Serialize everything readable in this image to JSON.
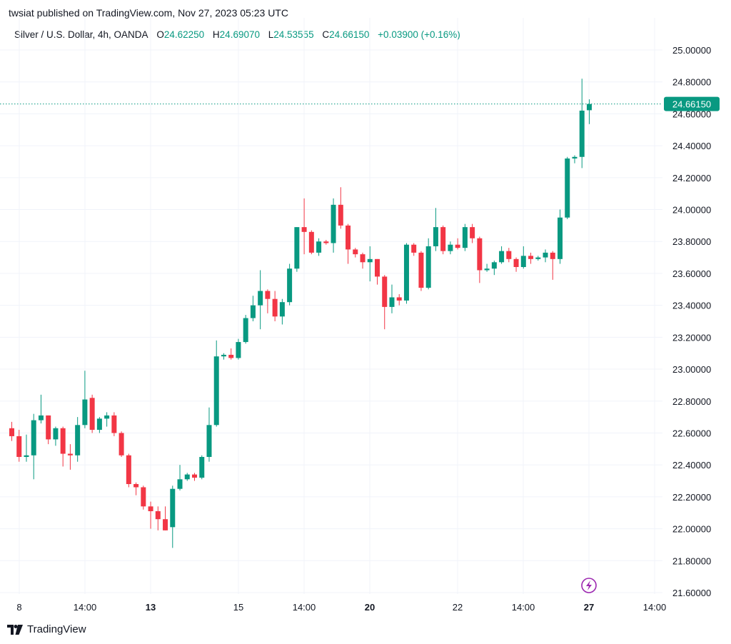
{
  "header": {
    "published": "twsiat published on TradingView.com, Nov 27, 2023 05:23 UTC"
  },
  "legend": {
    "symbol": "Silver / U.S. Dollar, 4h, OANDA",
    "o_label": "O",
    "o_value": "24.62250",
    "h_label": "H",
    "h_value": "24.69070",
    "l_label": "L",
    "l_value": "24.53555",
    "c_label": "C",
    "c_value": "24.66150",
    "change": "+0.03900 (+0.16%)"
  },
  "footer": {
    "brand": "TradingView"
  },
  "colors": {
    "up": "#089981",
    "down": "#F23645",
    "grid": "#F0F3FA",
    "last_price_line": "#089981",
    "flash_icon": "#9C27B0"
  },
  "chart_data": {
    "type": "candlestick",
    "ylim": [
      21.6,
      25.0
    ],
    "y_ticks": [
      "25.00000",
      "24.80000",
      "24.60000",
      "24.40000",
      "24.20000",
      "24.00000",
      "23.80000",
      "23.60000",
      "23.40000",
      "23.20000",
      "23.00000",
      "22.80000",
      "22.60000",
      "22.40000",
      "22.20000",
      "22.00000",
      "21.80000",
      "21.60000"
    ],
    "x_ticks": [
      {
        "label": "8",
        "bold": false
      },
      {
        "label": "14:00",
        "bold": false
      },
      {
        "label": "13",
        "bold": true
      },
      {
        "label": "15",
        "bold": false
      },
      {
        "label": "14:00",
        "bold": false
      },
      {
        "label": "20",
        "bold": true
      },
      {
        "label": "22",
        "bold": false
      },
      {
        "label": "14:00",
        "bold": false
      },
      {
        "label": "27",
        "bold": true
      },
      {
        "label": "14:00",
        "bold": false
      }
    ],
    "last_price": 24.6615,
    "last_price_label": "24.66150",
    "candles": [
      {
        "o": 22.63,
        "h": 22.67,
        "l": 22.55,
        "c": 22.58
      },
      {
        "o": 22.58,
        "h": 22.62,
        "l": 22.42,
        "c": 22.45
      },
      {
        "o": 22.45,
        "h": 22.59,
        "l": 22.42,
        "c": 22.46
      },
      {
        "o": 22.46,
        "h": 22.72,
        "l": 22.31,
        "c": 22.68
      },
      {
        "o": 22.68,
        "h": 22.84,
        "l": 22.66,
        "c": 22.71
      },
      {
        "o": 22.71,
        "h": 22.71,
        "l": 22.53,
        "c": 22.56
      },
      {
        "o": 22.56,
        "h": 22.64,
        "l": 22.52,
        "c": 22.63
      },
      {
        "o": 22.63,
        "h": 22.64,
        "l": 22.39,
        "c": 22.47
      },
      {
        "o": 22.47,
        "h": 22.53,
        "l": 22.37,
        "c": 22.46
      },
      {
        "o": 22.46,
        "h": 22.7,
        "l": 22.42,
        "c": 22.65
      },
      {
        "o": 22.65,
        "h": 22.99,
        "l": 22.63,
        "c": 22.81
      },
      {
        "o": 22.82,
        "h": 22.84,
        "l": 22.6,
        "c": 22.62
      },
      {
        "o": 22.62,
        "h": 22.7,
        "l": 22.6,
        "c": 22.69
      },
      {
        "o": 22.69,
        "h": 22.73,
        "l": 22.64,
        "c": 22.71
      },
      {
        "o": 22.71,
        "h": 22.73,
        "l": 22.58,
        "c": 22.6
      },
      {
        "o": 22.6,
        "h": 22.61,
        "l": 22.45,
        "c": 22.46
      },
      {
        "o": 22.46,
        "h": 22.47,
        "l": 22.26,
        "c": 22.28
      },
      {
        "o": 22.28,
        "h": 22.29,
        "l": 22.21,
        "c": 22.26
      },
      {
        "o": 22.26,
        "h": 22.27,
        "l": 22.12,
        "c": 22.14
      },
      {
        "o": 22.14,
        "h": 22.17,
        "l": 22.0,
        "c": 22.11
      },
      {
        "o": 22.11,
        "h": 22.14,
        "l": 21.99,
        "c": 22.06
      },
      {
        "o": 22.06,
        "h": 22.14,
        "l": 21.99,
        "c": 21.99
      },
      {
        "o": 22.01,
        "h": 22.27,
        "l": 21.88,
        "c": 22.25
      },
      {
        "o": 22.25,
        "h": 22.4,
        "l": 22.24,
        "c": 22.31
      },
      {
        "o": 22.31,
        "h": 22.35,
        "l": 22.3,
        "c": 22.34
      },
      {
        "o": 22.34,
        "h": 22.35,
        "l": 22.3,
        "c": 22.32
      },
      {
        "o": 22.32,
        "h": 22.46,
        "l": 22.31,
        "c": 22.45
      },
      {
        "o": 22.45,
        "h": 22.76,
        "l": 22.42,
        "c": 22.65
      },
      {
        "o": 22.65,
        "h": 23.18,
        "l": 22.64,
        "c": 23.08
      },
      {
        "o": 23.08,
        "h": 23.1,
        "l": 23.06,
        "c": 23.09
      },
      {
        "o": 23.09,
        "h": 23.13,
        "l": 23.06,
        "c": 23.07
      },
      {
        "o": 23.07,
        "h": 23.19,
        "l": 23.06,
        "c": 23.17
      },
      {
        "o": 23.17,
        "h": 23.34,
        "l": 23.16,
        "c": 23.32
      },
      {
        "o": 23.32,
        "h": 23.46,
        "l": 23.3,
        "c": 23.4
      },
      {
        "o": 23.4,
        "h": 23.62,
        "l": 23.25,
        "c": 23.49
      },
      {
        "o": 23.49,
        "h": 23.5,
        "l": 23.35,
        "c": 23.44
      },
      {
        "o": 23.44,
        "h": 23.49,
        "l": 23.3,
        "c": 23.33
      },
      {
        "o": 23.33,
        "h": 23.44,
        "l": 23.28,
        "c": 23.42
      },
      {
        "o": 23.42,
        "h": 23.66,
        "l": 23.4,
        "c": 23.63
      },
      {
        "o": 23.63,
        "h": 23.89,
        "l": 23.61,
        "c": 23.89
      },
      {
        "o": 23.89,
        "h": 24.07,
        "l": 23.72,
        "c": 23.86
      },
      {
        "o": 23.86,
        "h": 23.87,
        "l": 23.72,
        "c": 23.73
      },
      {
        "o": 23.73,
        "h": 23.82,
        "l": 23.71,
        "c": 23.8
      },
      {
        "o": 23.8,
        "h": 23.81,
        "l": 23.78,
        "c": 23.79
      },
      {
        "o": 23.79,
        "h": 24.07,
        "l": 23.73,
        "c": 24.03
      },
      {
        "o": 24.03,
        "h": 24.14,
        "l": 23.88,
        "c": 23.9
      },
      {
        "o": 23.9,
        "h": 23.91,
        "l": 23.66,
        "c": 23.75
      },
      {
        "o": 23.75,
        "h": 23.76,
        "l": 23.7,
        "c": 23.72
      },
      {
        "o": 23.72,
        "h": 23.73,
        "l": 23.63,
        "c": 23.67
      },
      {
        "o": 23.67,
        "h": 23.77,
        "l": 23.55,
        "c": 23.69
      },
      {
        "o": 23.69,
        "h": 23.69,
        "l": 23.53,
        "c": 23.58
      },
      {
        "o": 23.58,
        "h": 23.59,
        "l": 23.25,
        "c": 23.39
      },
      {
        "o": 23.39,
        "h": 23.53,
        "l": 23.35,
        "c": 23.45
      },
      {
        "o": 23.45,
        "h": 23.47,
        "l": 23.4,
        "c": 23.43
      },
      {
        "o": 23.43,
        "h": 23.79,
        "l": 23.41,
        "c": 23.78
      },
      {
        "o": 23.78,
        "h": 23.79,
        "l": 23.71,
        "c": 23.73
      },
      {
        "o": 23.73,
        "h": 23.74,
        "l": 23.49,
        "c": 23.51
      },
      {
        "o": 23.51,
        "h": 23.82,
        "l": 23.5,
        "c": 23.77
      },
      {
        "o": 23.77,
        "h": 24.01,
        "l": 23.74,
        "c": 23.89
      },
      {
        "o": 23.89,
        "h": 23.9,
        "l": 23.72,
        "c": 23.74
      },
      {
        "o": 23.74,
        "h": 23.8,
        "l": 23.72,
        "c": 23.78
      },
      {
        "o": 23.78,
        "h": 23.82,
        "l": 23.75,
        "c": 23.76
      },
      {
        "o": 23.76,
        "h": 23.91,
        "l": 23.74,
        "c": 23.89
      },
      {
        "o": 23.89,
        "h": 23.91,
        "l": 23.79,
        "c": 23.82
      },
      {
        "o": 23.82,
        "h": 23.83,
        "l": 23.54,
        "c": 23.62
      },
      {
        "o": 23.62,
        "h": 23.66,
        "l": 23.61,
        "c": 23.63
      },
      {
        "o": 23.63,
        "h": 23.68,
        "l": 23.59,
        "c": 23.67
      },
      {
        "o": 23.67,
        "h": 23.77,
        "l": 23.66,
        "c": 23.74
      },
      {
        "o": 23.74,
        "h": 23.76,
        "l": 23.67,
        "c": 23.69
      },
      {
        "o": 23.69,
        "h": 23.7,
        "l": 23.61,
        "c": 23.64
      },
      {
        "o": 23.64,
        "h": 23.77,
        "l": 23.63,
        "c": 23.71
      },
      {
        "o": 23.71,
        "h": 23.73,
        "l": 23.66,
        "c": 23.69
      },
      {
        "o": 23.69,
        "h": 23.71,
        "l": 23.68,
        "c": 23.7
      },
      {
        "o": 23.7,
        "h": 23.75,
        "l": 23.67,
        "c": 23.73
      },
      {
        "o": 23.73,
        "h": 23.74,
        "l": 23.56,
        "c": 23.69
      },
      {
        "o": 23.69,
        "h": 24.0,
        "l": 23.66,
        "c": 23.95
      },
      {
        "o": 23.95,
        "h": 24.33,
        "l": 23.94,
        "c": 24.32
      },
      {
        "o": 24.32,
        "h": 24.34,
        "l": 24.29,
        "c": 24.33
      },
      {
        "o": 24.33,
        "h": 24.82,
        "l": 24.26,
        "c": 24.62
      },
      {
        "o": 24.6225,
        "h": 24.6907,
        "l": 24.53555,
        "c": 24.6615
      }
    ]
  }
}
